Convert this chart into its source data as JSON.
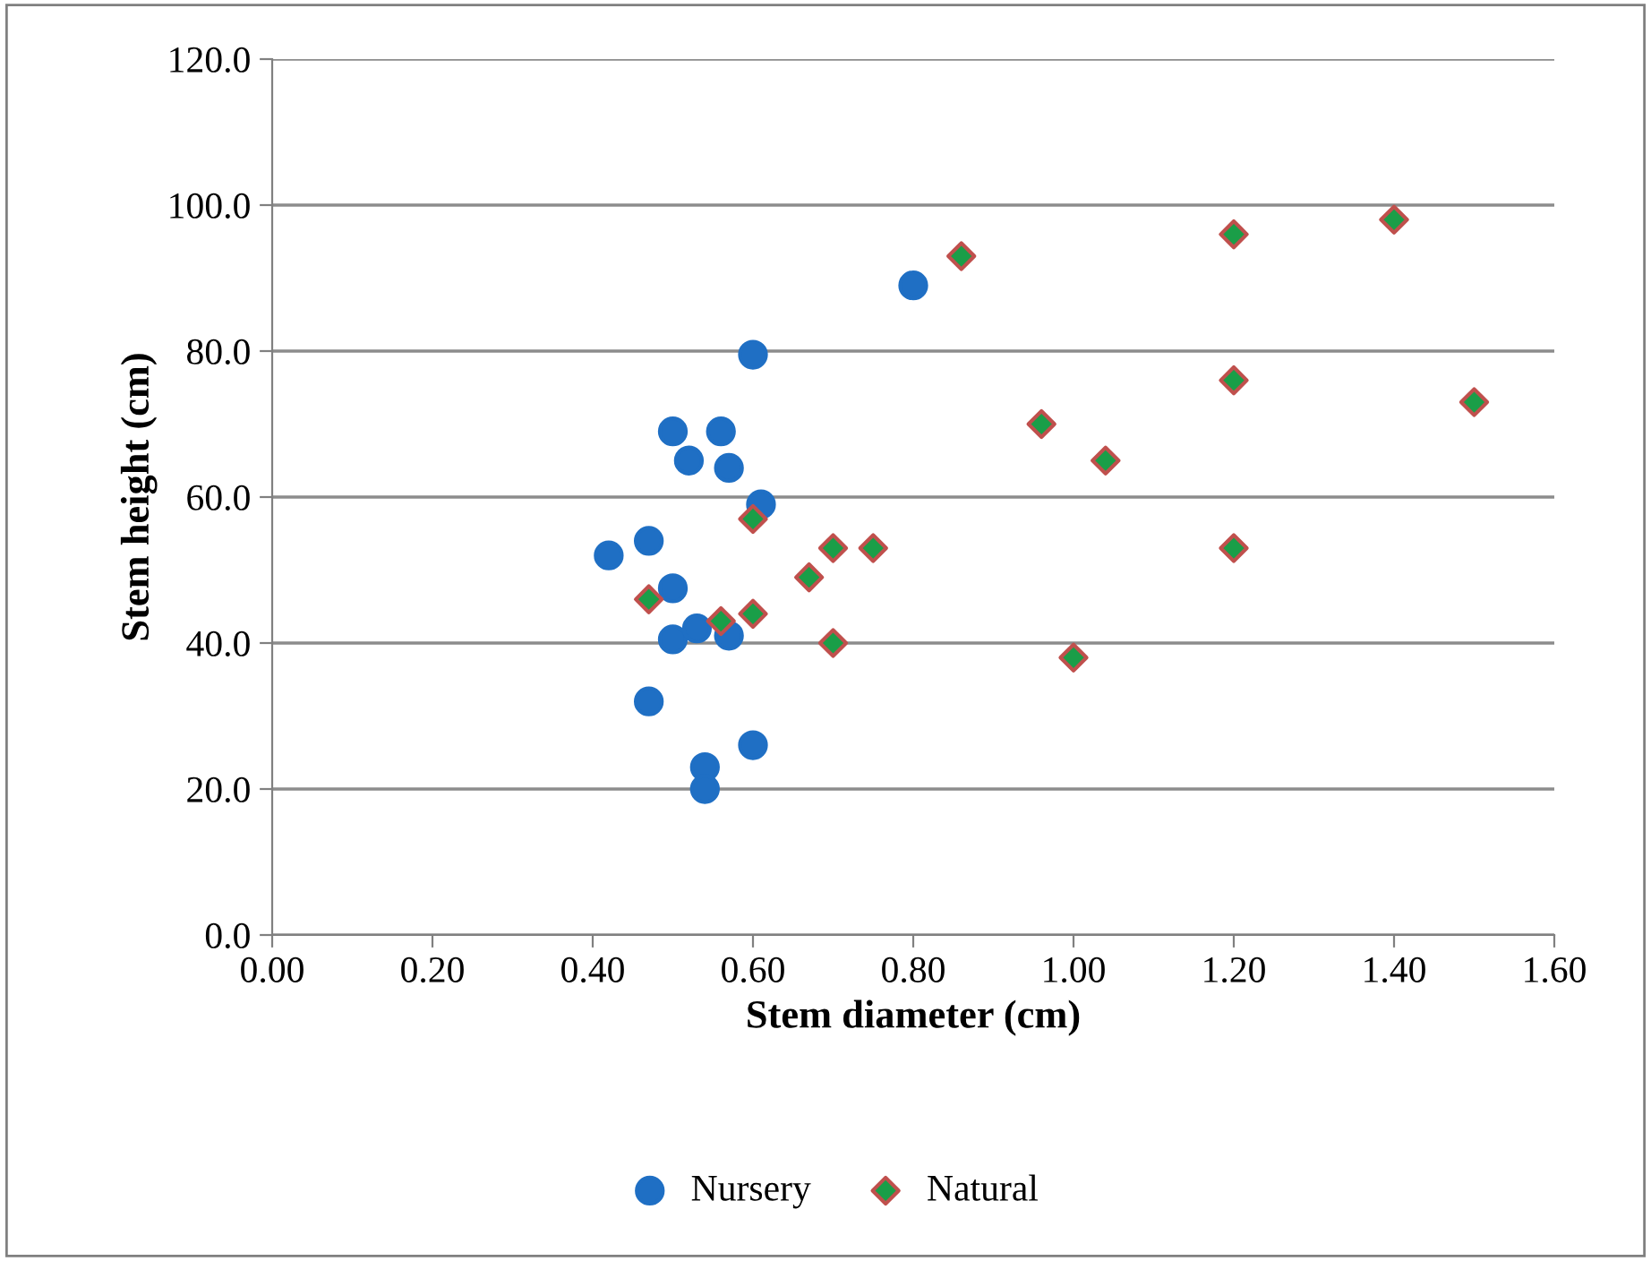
{
  "chart_data": {
    "type": "scatter",
    "xlabel": "Stem diameter (cm)",
    "ylabel": "Stem height (cm)",
    "xlim": [
      0,
      1.6
    ],
    "ylim": [
      0,
      120
    ],
    "xticks": [
      {
        "value": 0,
        "label": "0.00"
      },
      {
        "value": 0.2,
        "label": "0.20"
      },
      {
        "value": 0.4,
        "label": "0.40"
      },
      {
        "value": 0.6,
        "label": "0.60"
      },
      {
        "value": 0.8,
        "label": "0.80"
      },
      {
        "value": 1.0,
        "label": "1.00"
      },
      {
        "value": 1.2,
        "label": "1.20"
      },
      {
        "value": 1.4,
        "label": "1.40"
      },
      {
        "value": 1.6,
        "label": "1.60"
      }
    ],
    "yticks": [
      {
        "value": 0,
        "label": "0.0"
      },
      {
        "value": 20,
        "label": "20.0"
      },
      {
        "value": 40,
        "label": "40.0"
      },
      {
        "value": 60,
        "label": "60.0"
      },
      {
        "value": 80,
        "label": "80.0"
      },
      {
        "value": 100,
        "label": "100.0"
      },
      {
        "value": 120,
        "label": "120.0"
      }
    ],
    "grid": "y",
    "legend": "bottom",
    "series": [
      {
        "name": "Nursery",
        "color": "#1f6fc4",
        "marker": "circle",
        "x": [
          0.42,
          0.47,
          0.47,
          0.5,
          0.5,
          0.5,
          0.52,
          0.53,
          0.54,
          0.54,
          0.56,
          0.57,
          0.57,
          0.6,
          0.6,
          0.61,
          0.8
        ],
        "values": [
          52,
          54,
          32,
          69,
          47.5,
          40.5,
          65,
          42,
          23,
          20,
          69,
          64,
          41,
          79.5,
          26,
          59,
          89
        ]
      },
      {
        "name": "Natural",
        "color": "#1a9e48",
        "marker": "diamond",
        "x": [
          0.47,
          0.56,
          0.6,
          0.6,
          0.67,
          0.7,
          0.7,
          0.75,
          0.86,
          0.96,
          1.0,
          1.04,
          1.2,
          1.2,
          1.2,
          1.4,
          1.5
        ],
        "values": [
          46,
          43,
          57,
          44,
          49,
          53,
          40,
          53,
          93,
          70,
          38,
          65,
          96,
          76,
          53,
          98,
          73
        ]
      }
    ]
  }
}
